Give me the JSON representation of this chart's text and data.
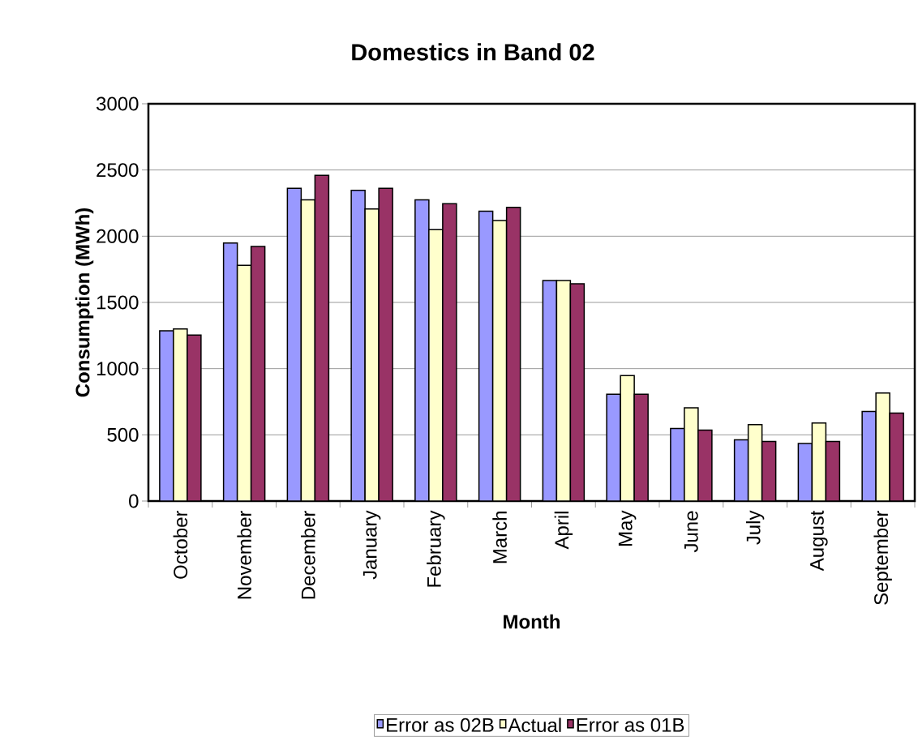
{
  "chart_data": {
    "type": "bar",
    "title": "Domestics in Band 02",
    "xlabel": "Month",
    "ylabel": "Consumption (MWh)",
    "categories": [
      "October",
      "November",
      "December",
      "January",
      "February",
      "March",
      "April",
      "May",
      "June",
      "July",
      "August",
      "September"
    ],
    "series": [
      {
        "name": "Error as 02B",
        "color": "#9999ff",
        "values": [
          1285,
          1948,
          2361,
          2347,
          2275,
          2189,
          1665,
          806,
          548,
          462,
          434,
          677
        ]
      },
      {
        "name": "Actual",
        "color": "#ffffcc",
        "values": [
          1299,
          1780,
          2275,
          2205,
          2050,
          2119,
          1665,
          947,
          704,
          577,
          589,
          816
        ]
      },
      {
        "name": "Error  as 01B",
        "color": "#993366",
        "values": [
          1254,
          1923,
          2459,
          2361,
          2246,
          2218,
          1641,
          806,
          536,
          450,
          450,
          665
        ]
      }
    ],
    "ylim": [
      0,
      3000
    ],
    "yticks": [
      0,
      500,
      1000,
      1500,
      2000,
      2500,
      3000
    ],
    "grid": "y",
    "legend": "bottom"
  }
}
